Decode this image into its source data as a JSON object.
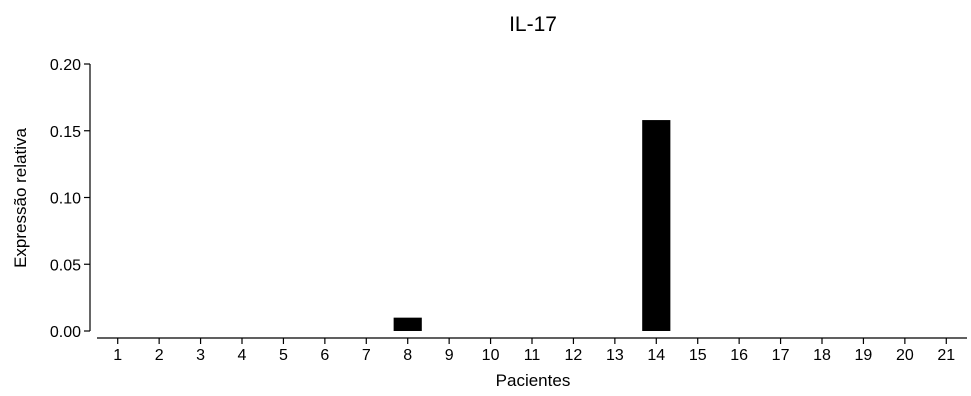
{
  "chart_data": {
    "type": "bar",
    "title": "IL-17",
    "xlabel": "Pacientes",
    "ylabel": "Expressão relativa",
    "categories": [
      "1",
      "2",
      "3",
      "4",
      "5",
      "6",
      "7",
      "8",
      "9",
      "10",
      "11",
      "12",
      "13",
      "14",
      "15",
      "16",
      "17",
      "18",
      "19",
      "20",
      "21"
    ],
    "values": [
      0,
      0,
      0,
      0,
      0,
      0,
      0,
      0.01,
      0,
      0,
      0,
      0,
      0,
      0.158,
      0,
      0,
      0,
      0,
      0,
      0,
      0
    ],
    "ylim": [
      0,
      0.2
    ],
    "yticks": [
      "0.00",
      "0.05",
      "0.10",
      "0.15",
      "0.20"
    ],
    "bar_color": "#000000",
    "grid": false,
    "legend": "none"
  }
}
